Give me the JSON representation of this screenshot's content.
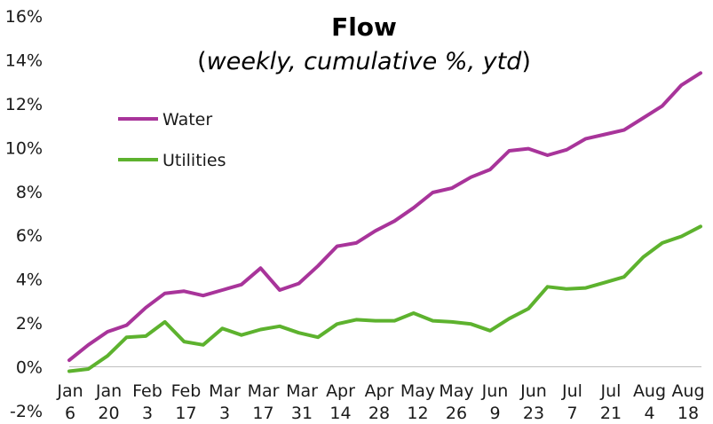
{
  "chart_data": {
    "type": "line",
    "title": "Flow",
    "subtitle_prefix": "(",
    "subtitle_italic": "weekly, cumulative %, ytd",
    "subtitle_suffix": ")",
    "xlabel": "",
    "ylabel": "",
    "ylim": [
      -2,
      16
    ],
    "yticks": [
      "16%",
      "14%",
      "12%",
      "10%",
      "8%",
      "6%",
      "4%",
      "2%",
      "0%",
      "-2%"
    ],
    "ytick_values": [
      16,
      14,
      12,
      10,
      8,
      6,
      4,
      2,
      0,
      -2
    ],
    "x_tick_labels": [
      {
        "top": "Jan",
        "bottom": "6"
      },
      {
        "top": "Jan",
        "bottom": "20"
      },
      {
        "top": "Feb",
        "bottom": "3"
      },
      {
        "top": "Feb",
        "bottom": "17"
      },
      {
        "top": "Mar",
        "bottom": "3"
      },
      {
        "top": "Mar",
        "bottom": "17"
      },
      {
        "top": "Mar",
        "bottom": "31"
      },
      {
        "top": "Apr",
        "bottom": "14"
      },
      {
        "top": "Apr",
        "bottom": "28"
      },
      {
        "top": "May",
        "bottom": "12"
      },
      {
        "top": "May",
        "bottom": "26"
      },
      {
        "top": "Jun",
        "bottom": "9"
      },
      {
        "top": "Jun",
        "bottom": "23"
      },
      {
        "top": "Jul",
        "bottom": "7"
      },
      {
        "top": "Jul",
        "bottom": "21"
      },
      {
        "top": "Aug",
        "bottom": "4"
      },
      {
        "top": "Aug",
        "bottom": "18"
      }
    ],
    "legend_position": "upper-left",
    "grid": false,
    "series": [
      {
        "name": "Water",
        "color": "#a8349a",
        "values": [
          0.3,
          1.0,
          1.6,
          1.9,
          2.7,
          3.35,
          3.45,
          3.25,
          3.5,
          3.75,
          4.5,
          3.5,
          3.8,
          4.6,
          5.5,
          5.65,
          6.2,
          6.65,
          7.25,
          7.95,
          8.15,
          8.65,
          9.0,
          9.85,
          9.95,
          9.65,
          9.9,
          10.4,
          10.6,
          10.8,
          11.35,
          11.9,
          12.85,
          13.4
        ]
      },
      {
        "name": "Utilities",
        "color": "#5db22e",
        "values": [
          -0.2,
          -0.1,
          0.5,
          1.35,
          1.4,
          2.05,
          1.15,
          1.0,
          1.75,
          1.45,
          1.7,
          1.85,
          1.55,
          1.35,
          1.95,
          2.15,
          2.1,
          2.1,
          2.45,
          2.1,
          2.05,
          1.95,
          1.65,
          2.2,
          2.65,
          3.65,
          3.55,
          3.6,
          3.85,
          4.1,
          5.0,
          5.65,
          5.95,
          6.4
        ]
      }
    ]
  }
}
